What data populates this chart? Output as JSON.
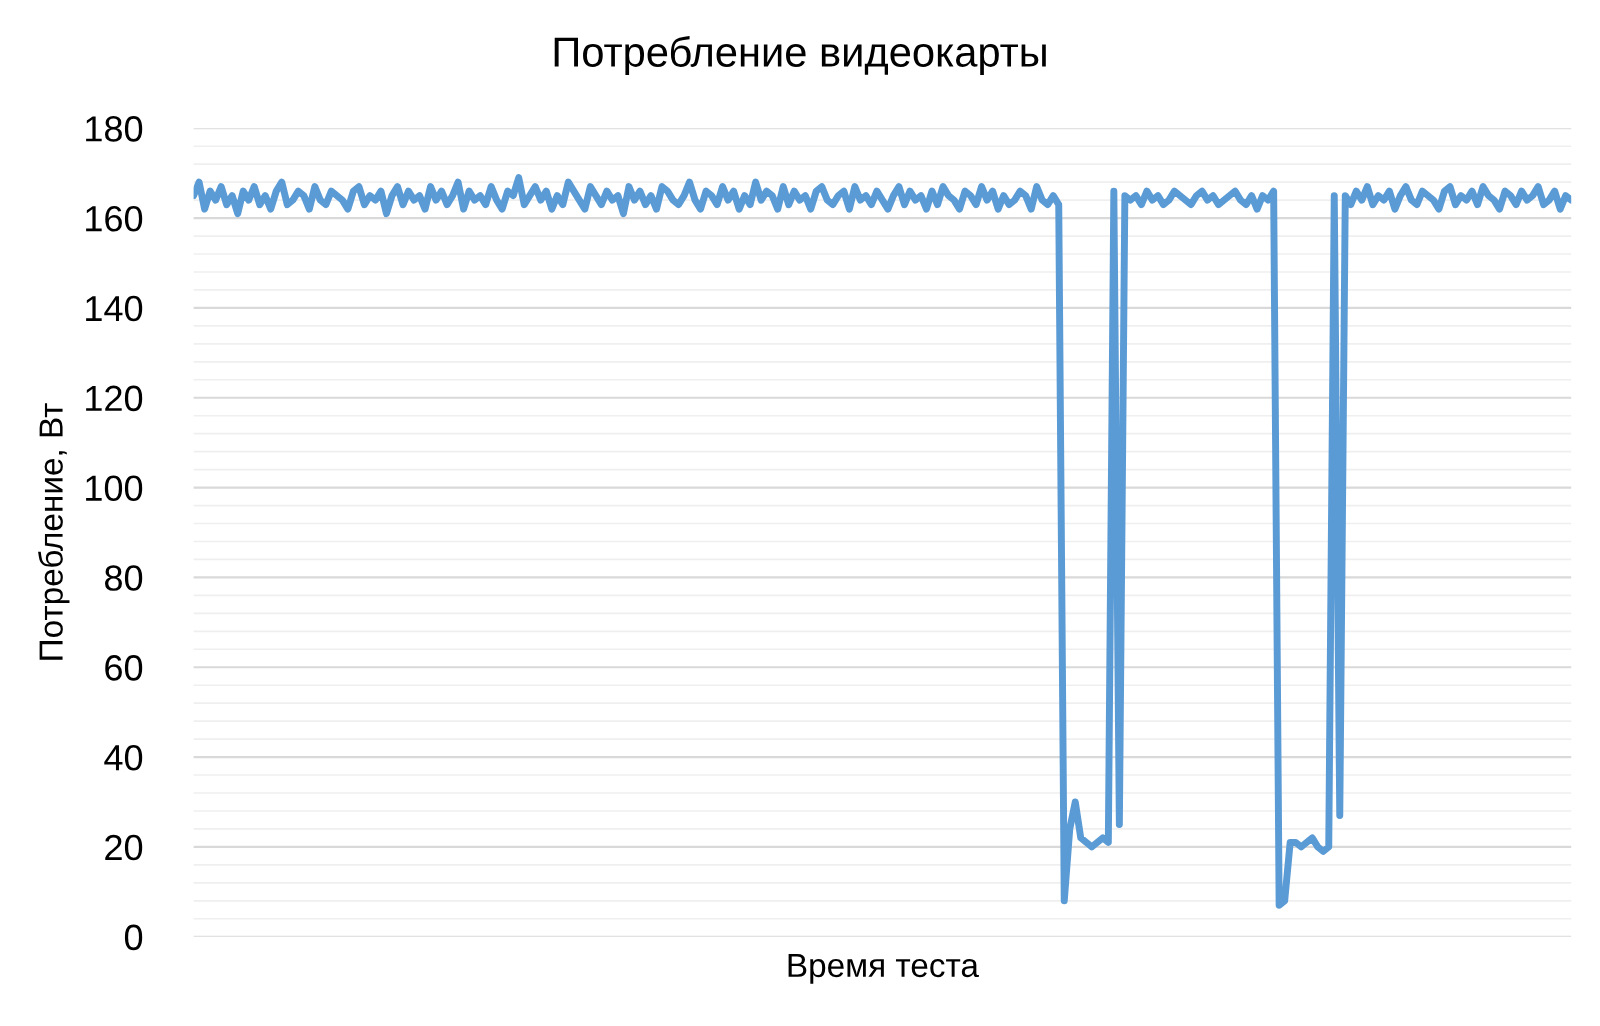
{
  "chart_data": {
    "type": "line",
    "title": "Потребление видеокарты",
    "xlabel": "Время теста",
    "ylabel": "Потребление, Вт",
    "categories": [
      null,
      null,
      null,
      null,
      null,
      null,
      null,
      null,
      null,
      null,
      null,
      null,
      null,
      null,
      null,
      null,
      null,
      null,
      null,
      null,
      null,
      null,
      null,
      null,
      null,
      null,
      null,
      null,
      null,
      null,
      null,
      null,
      null,
      null,
      null,
      null,
      null,
      null,
      null,
      null,
      null,
      null,
      null,
      null,
      null,
      null,
      null,
      null,
      null,
      null,
      null,
      null,
      null,
      null,
      null,
      null,
      null,
      null,
      null,
      null,
      null,
      null,
      null,
      null,
      null,
      null,
      null,
      null,
      null,
      null,
      null,
      null,
      null,
      null,
      null,
      null,
      null,
      null,
      null,
      null,
      null,
      null,
      null,
      null,
      null,
      null,
      null,
      null,
      null,
      null,
      null,
      null,
      null,
      null,
      null,
      null,
      null,
      null,
      null,
      null,
      null,
      null,
      null,
      null,
      null,
      null,
      null,
      null,
      null,
      null,
      null,
      null,
      null,
      null,
      null,
      null,
      null,
      null,
      null,
      null,
      null,
      null,
      null,
      null,
      null,
      null,
      null,
      null,
      null,
      null,
      null,
      null,
      null,
      null,
      null,
      null,
      null,
      null,
      null,
      null,
      null,
      null,
      null,
      null,
      null,
      null,
      null,
      null,
      null,
      null,
      null,
      null,
      null,
      null,
      null,
      null,
      null,
      null,
      null,
      null,
      null,
      null,
      null,
      null,
      null,
      null,
      null,
      null,
      null,
      null,
      null,
      null,
      null,
      null,
      null,
      null,
      null,
      null,
      null,
      null,
      null,
      null,
      null,
      null,
      null,
      null,
      null,
      null,
      null,
      null,
      null,
      null,
      null,
      null,
      null,
      null,
      null,
      null,
      null,
      null,
      null,
      null,
      null,
      null,
      null,
      null,
      null,
      null,
      null,
      null,
      null,
      null,
      null,
      null,
      null,
      null,
      null,
      null,
      null,
      null,
      null,
      null,
      null,
      null,
      null,
      null,
      null,
      null,
      null,
      null,
      null,
      null,
      null,
      null,
      null,
      null,
      null,
      null,
      null,
      null,
      null,
      null,
      null,
      null,
      null,
      null,
      null,
      null,
      null,
      null,
      null
    ],
    "series": [
      {
        "color": "#5b9bd5",
        "values": [
          165,
          168,
          162,
          166,
          164,
          167,
          163,
          165,
          161,
          166,
          164,
          167,
          163,
          165,
          162,
          166,
          168,
          163,
          164,
          166,
          165,
          162,
          167,
          164,
          163,
          166,
          165,
          164,
          162,
          166,
          167,
          163,
          165,
          164,
          166,
          161,
          165,
          167,
          163,
          166,
          164,
          165,
          162,
          167,
          164,
          166,
          163,
          165,
          168,
          162,
          166,
          164,
          165,
          163,
          167,
          164,
          162,
          166,
          165,
          169,
          163,
          165,
          167,
          164,
          166,
          162,
          165,
          163,
          168,
          166,
          164,
          162,
          167,
          165,
          163,
          166,
          164,
          165,
          161,
          167,
          164,
          166,
          163,
          165,
          162,
          167,
          166,
          164,
          163,
          165,
          168,
          164,
          162,
          166,
          165,
          163,
          167,
          164,
          166,
          162,
          165,
          163,
          168,
          164,
          166,
          165,
          162,
          167,
          163,
          166,
          164,
          165,
          162,
          166,
          167,
          164,
          163,
          165,
          166,
          162,
          167,
          164,
          165,
          163,
          166,
          164,
          162,
          165,
          167,
          163,
          166,
          164,
          165,
          162,
          166,
          163,
          167,
          165,
          164,
          162,
          166,
          165,
          163,
          167,
          164,
          166,
          162,
          165,
          163,
          164,
          166,
          165,
          162,
          167,
          164,
          163,
          165,
          163,
          8,
          24,
          30,
          22,
          21,
          20,
          21,
          22,
          21,
          166,
          25,
          165,
          164,
          165,
          163,
          166,
          164,
          165,
          163,
          164,
          166,
          165,
          164,
          163,
          165,
          166,
          164,
          165,
          163,
          164,
          165,
          166,
          164,
          163,
          165,
          162,
          165,
          164,
          166,
          7,
          8,
          21,
          21,
          20,
          21,
          22,
          20,
          19,
          20,
          165,
          27,
          165,
          163,
          166,
          164,
          167,
          163,
          165,
          164,
          166,
          162,
          165,
          167,
          164,
          163,
          166,
          165,
          164,
          162,
          166,
          167,
          163,
          165,
          164,
          166,
          163,
          167,
          165,
          164,
          162,
          166,
          165,
          163,
          166,
          164,
          165,
          167,
          163,
          164,
          166,
          162,
          165,
          164
        ]
      }
    ],
    "ylim": [
      0,
      180
    ],
    "yticks": [
      0,
      {
        "value": 4,
        "label": null
      },
      {
        "value": 8,
        "label": null
      },
      {
        "value": 12,
        "label": null
      },
      {
        "value": 16,
        "label": null
      },
      20,
      {
        "value": 24,
        "label": null
      },
      {
        "value": 28,
        "label": null
      },
      {
        "value": 32,
        "label": null
      },
      {
        "value": 36,
        "label": null
      },
      40,
      {
        "value": 44,
        "label": null
      },
      {
        "value": 48,
        "label": null
      },
      {
        "value": 52,
        "label": null
      },
      {
        "value": 56,
        "label": null
      },
      60,
      {
        "value": 64,
        "label": null
      },
      {
        "value": 68,
        "label": null
      },
      {
        "value": 72,
        "label": null
      },
      {
        "value": 76,
        "label": null
      },
      80,
      {
        "value": 84,
        "label": null
      },
      {
        "value": 88,
        "label": null
      },
      {
        "value": 92,
        "label": null
      },
      {
        "value": 96,
        "label": null
      },
      100,
      {
        "value": 104,
        "label": null
      },
      {
        "value": 108,
        "label": null
      },
      {
        "value": 112,
        "label": null
      },
      {
        "value": 116,
        "label": null
      },
      120,
      {
        "value": 124,
        "label": null
      },
      {
        "value": 128,
        "label": null
      },
      {
        "value": 132,
        "label": null
      },
      {
        "value": 136,
        "label": null
      },
      140,
      {
        "value": 144,
        "label": null
      },
      {
        "value": 148,
        "label": null
      },
      {
        "value": 152,
        "label": null
      },
      {
        "value": 156,
        "label": null
      },
      160,
      {
        "value": 164,
        "label": null
      },
      {
        "value": 168,
        "label": null
      },
      {
        "value": 172,
        "label": null
      },
      {
        "value": 176,
        "label": null
      },
      180
    ],
    "grid": "y",
    "marker": "none",
    "line_style": "solid"
  }
}
